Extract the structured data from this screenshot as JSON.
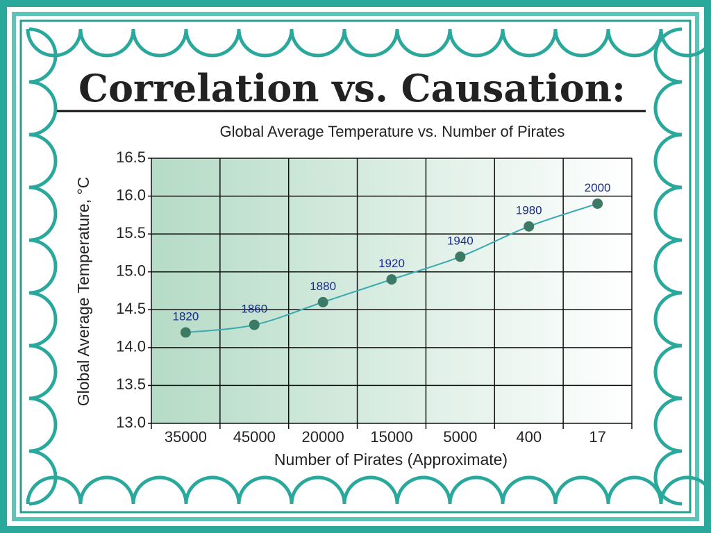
{
  "heading": "Correlation vs. Causation:",
  "chart_data": {
    "type": "line",
    "title": "Global Average Temperature vs. Number of Pirates",
    "x_label": "Number of Pirates (Approximate)",
    "y_label": "Global Average Temperature, °C",
    "categories": [
      "35000",
      "45000",
      "20000",
      "15000",
      "5000",
      "400",
      "17"
    ],
    "values": [
      14.2,
      14.3,
      14.6,
      14.9,
      15.2,
      15.6,
      15.9
    ],
    "point_labels": [
      "1820",
      "1860",
      "1880",
      "1920",
      "1940",
      "1980",
      "2000"
    ],
    "color": "#3aaab0",
    "marker_color": "#3d7a66",
    "ylim": [
      13,
      16.5
    ],
    "yticks": [
      {
        "value": 13,
        "label": "13.0"
      },
      13.5,
      {
        "value": 14,
        "label": "14.0"
      },
      14.5,
      {
        "value": 15,
        "label": "15.0"
      },
      15.5,
      {
        "value": 16,
        "label": "16.0"
      },
      16.5
    ],
    "grid": true
  }
}
